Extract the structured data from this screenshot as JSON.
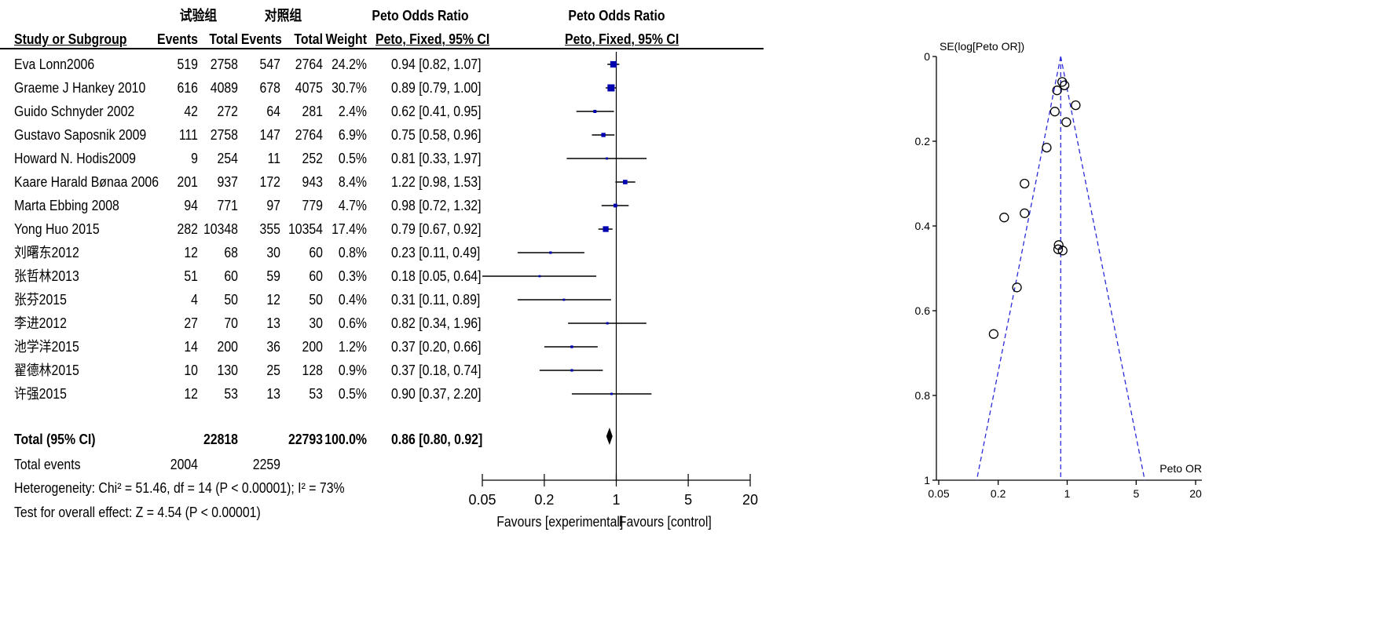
{
  "header": {
    "group_experimental": "试验组",
    "group_control": "对照组",
    "ratio_title": "Peto Odds Ratio",
    "ratio_title_plot": "Peto Odds Ratio",
    "col_study": "Study or Subgroup",
    "col_events_exp": "Events",
    "col_total_exp": "Total",
    "col_events_ctl": "Events",
    "col_total_ctl": "Total",
    "col_weight": "Weight",
    "col_ci": "Peto, Fixed, 95% CI",
    "col_ci_plot": "Peto, Fixed, 95% CI"
  },
  "studies": [
    {
      "name": "Eva Lonn2006",
      "e1": "519",
      "t1": "2758",
      "e2": "547",
      "t2": "2764",
      "weight": "24.2%",
      "ci": "0.94 [0.82, 1.07]"
    },
    {
      "name": "Graeme J Hankey  2010",
      "e1": "616",
      "t1": "4089",
      "e2": "678",
      "t2": "4075",
      "weight": "30.7%",
      "ci": "0.89 [0.79, 1.00]"
    },
    {
      "name": "Guido Schnyder  2002",
      "e1": "42",
      "t1": "272",
      "e2": "64",
      "t2": "281",
      "weight": "2.4%",
      "ci": "0.62 [0.41, 0.95]"
    },
    {
      "name": "Gustavo Saposnik  2009",
      "e1": "111",
      "t1": "2758",
      "e2": "147",
      "t2": "2764",
      "weight": "6.9%",
      "ci": "0.75 [0.58, 0.96]"
    },
    {
      "name": "Howard N. Hodis2009",
      "e1": "9",
      "t1": "254",
      "e2": "11",
      "t2": "252",
      "weight": "0.5%",
      "ci": "0.81 [0.33, 1.97]"
    },
    {
      "name": "Kaare Harald Bønaa  2006",
      "e1": "201",
      "t1": "937",
      "e2": "172",
      "t2": "943",
      "weight": "8.4%",
      "ci": "1.22 [0.98, 1.53]"
    },
    {
      "name": "Marta Ebbing  2008",
      "e1": "94",
      "t1": "771",
      "e2": "97",
      "t2": "779",
      "weight": "4.7%",
      "ci": "0.98 [0.72, 1.32]"
    },
    {
      "name": "Yong Huo   2015",
      "e1": "282",
      "t1": "10348",
      "e2": "355",
      "t2": "10354",
      "weight": "17.4%",
      "ci": "0.79 [0.67, 0.92]"
    },
    {
      "name": "刘曙东2012",
      "e1": "12",
      "t1": "68",
      "e2": "30",
      "t2": "60",
      "weight": "0.8%",
      "ci": "0.23 [0.11, 0.49]"
    },
    {
      "name": "张哲林2013",
      "e1": "51",
      "t1": "60",
      "e2": "59",
      "t2": "60",
      "weight": "0.3%",
      "ci": "0.18 [0.05, 0.64]"
    },
    {
      "name": "张芬2015",
      "e1": "4",
      "t1": "50",
      "e2": "12",
      "t2": "50",
      "weight": "0.4%",
      "ci": "0.31 [0.11, 0.89]"
    },
    {
      "name": "李进2012",
      "e1": "27",
      "t1": "70",
      "e2": "13",
      "t2": "30",
      "weight": "0.6%",
      "ci": "0.82 [0.34, 1.96]"
    },
    {
      "name": "池学洋2015",
      "e1": "14",
      "t1": "200",
      "e2": "36",
      "t2": "200",
      "weight": "1.2%",
      "ci": "0.37 [0.20, 0.66]"
    },
    {
      "name": "翟德林2015",
      "e1": "10",
      "t1": "130",
      "e2": "25",
      "t2": "128",
      "weight": "0.9%",
      "ci": "0.37 [0.18, 0.74]"
    },
    {
      "name": "许强2015",
      "e1": "12",
      "t1": "53",
      "e2": "13",
      "t2": "53",
      "weight": "0.5%",
      "ci": "0.90 [0.37, 2.20]"
    }
  ],
  "total": {
    "label": "Total (95% CI)",
    "t1": "22818",
    "t2": "22793",
    "weight": "100.0%",
    "ci": "0.86 [0.80, 0.92]",
    "events_label": "Total events",
    "events_exp": "2004",
    "events_ctl": "2259"
  },
  "footer": {
    "heterogeneity": "Heterogeneity: Chi² = 51.46, df = 14 (P < 0.00001); I² = 73%",
    "overall": "Test for overall effect: Z = 4.54 (P < 0.00001)",
    "favours_exp": "Favours [experimental]",
    "favours_ctl": "Favours [control]"
  },
  "chart_data": [
    {
      "type": "forest",
      "x_scale": "log",
      "xlim": [
        0.05,
        20
      ],
      "xticks": [
        "0.05",
        "0.2",
        "1",
        "5",
        "20"
      ],
      "null_line": 1,
      "points": [
        {
          "or": 0.94,
          "lo": 0.82,
          "hi": 1.07,
          "w": 24.2
        },
        {
          "or": 0.89,
          "lo": 0.79,
          "hi": 1.0,
          "w": 30.7
        },
        {
          "or": 0.62,
          "lo": 0.41,
          "hi": 0.95,
          "w": 2.4
        },
        {
          "or": 0.75,
          "lo": 0.58,
          "hi": 0.96,
          "w": 6.9
        },
        {
          "or": 0.81,
          "lo": 0.33,
          "hi": 1.97,
          "w": 0.5
        },
        {
          "or": 1.22,
          "lo": 0.98,
          "hi": 1.53,
          "w": 8.4
        },
        {
          "or": 0.98,
          "lo": 0.72,
          "hi": 1.32,
          "w": 4.7
        },
        {
          "or": 0.79,
          "lo": 0.67,
          "hi": 0.92,
          "w": 17.4
        },
        {
          "or": 0.23,
          "lo": 0.11,
          "hi": 0.49,
          "w": 0.8
        },
        {
          "or": 0.18,
          "lo": 0.05,
          "hi": 0.64,
          "w": 0.3
        },
        {
          "or": 0.31,
          "lo": 0.11,
          "hi": 0.89,
          "w": 0.4
        },
        {
          "or": 0.82,
          "lo": 0.34,
          "hi": 1.96,
          "w": 0.6
        },
        {
          "or": 0.37,
          "lo": 0.2,
          "hi": 0.66,
          "w": 1.2
        },
        {
          "or": 0.37,
          "lo": 0.18,
          "hi": 0.74,
          "w": 0.9
        },
        {
          "or": 0.9,
          "lo": 0.37,
          "hi": 2.2,
          "w": 0.5
        }
      ],
      "pooled": {
        "or": 0.86,
        "lo": 0.8,
        "hi": 0.92
      }
    },
    {
      "type": "scatter",
      "subtype": "funnel",
      "x_scale": "log",
      "xlim": [
        0.05,
        20
      ],
      "ylim": [
        0,
        1
      ],
      "y_inverted": true,
      "xlabel": "Peto OR",
      "ylabel": "SE(log[Peto OR])",
      "xticks": [
        "0.05",
        "0.2",
        "1",
        "5",
        "20"
      ],
      "yticks": [
        "0",
        "0.2",
        "0.4",
        "0.6",
        "0.8",
        "1"
      ],
      "pooled_or": 0.86,
      "points": [
        {
          "x": 0.94,
          "y": 0.068
        },
        {
          "x": 0.89,
          "y": 0.06
        },
        {
          "x": 0.62,
          "y": 0.215
        },
        {
          "x": 0.75,
          "y": 0.13
        },
        {
          "x": 0.81,
          "y": 0.455
        },
        {
          "x": 1.22,
          "y": 0.115
        },
        {
          "x": 0.98,
          "y": 0.155
        },
        {
          "x": 0.79,
          "y": 0.08
        },
        {
          "x": 0.23,
          "y": 0.38
        },
        {
          "x": 0.18,
          "y": 0.655
        },
        {
          "x": 0.31,
          "y": 0.545
        },
        {
          "x": 0.82,
          "y": 0.445
        },
        {
          "x": 0.37,
          "y": 0.3
        },
        {
          "x": 0.37,
          "y": 0.37
        },
        {
          "x": 0.9,
          "y": 0.458
        }
      ]
    }
  ]
}
